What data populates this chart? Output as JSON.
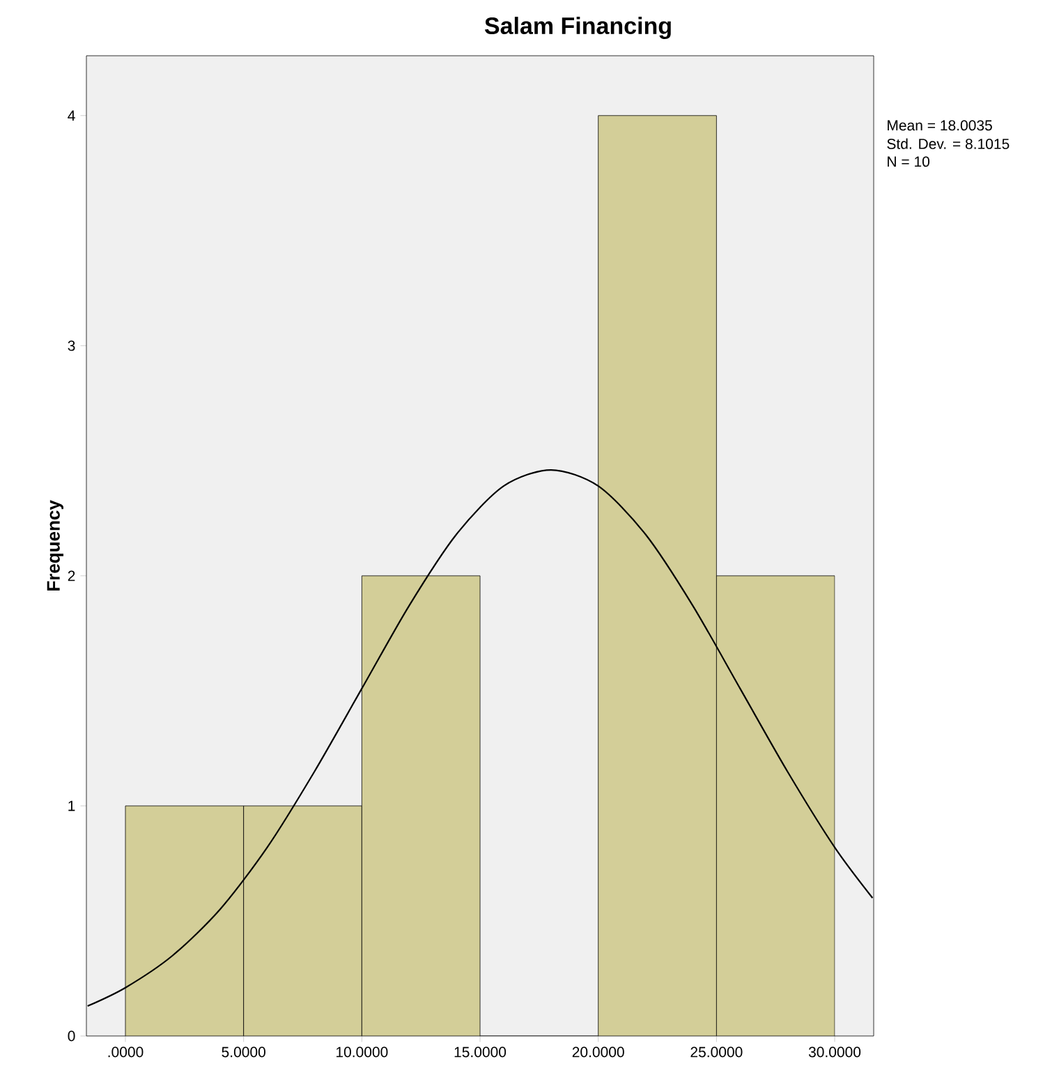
{
  "chart_data": {
    "type": "histogram",
    "title": "Salam Financing",
    "ylabel": "Frequency",
    "bins": [
      0,
      5,
      10,
      15,
      20,
      25,
      30
    ],
    "values": [
      1,
      1,
      2,
      0,
      4,
      2
    ],
    "color": "#d3ce98",
    "series": [
      {
        "type": "line",
        "color": "#000000",
        "x": [
          -1.6,
          0,
          2,
          4,
          6,
          8,
          10,
          12,
          14,
          16,
          18,
          20,
          22,
          24,
          26,
          28,
          30,
          31.6
        ],
        "values": [
          0.13,
          0.21,
          0.35,
          0.55,
          0.82,
          1.15,
          1.51,
          1.87,
          2.18,
          2.39,
          2.46,
          2.39,
          2.18,
          1.87,
          1.51,
          1.15,
          0.82,
          0.6
        ]
      }
    ],
    "xlim": [
      -1.65,
      31.65
    ],
    "ylim": [
      0,
      4.26
    ],
    "xticks": [
      {
        "value": 0,
        "label": ".0000"
      },
      {
        "value": 5,
        "label": "5.0000"
      },
      {
        "value": 10,
        "label": "10.0000"
      },
      {
        "value": 15,
        "label": "15.0000"
      },
      {
        "value": 20,
        "label": "20.0000"
      },
      {
        "value": 25,
        "label": "25.0000"
      },
      {
        "value": 30,
        "label": "30.0000"
      }
    ],
    "yticks": [
      0,
      1,
      2,
      3,
      4
    ],
    "annotations": [
      "Mean = 18.0035",
      "Std. Dev. = 8.1015",
      "N = 10"
    ],
    "grid": false,
    "marker": "none"
  }
}
